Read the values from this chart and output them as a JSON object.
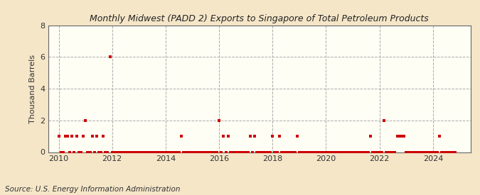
{
  "title": "Monthly Midwest (PADD 2) Exports to Singapore of Total Petroleum Products",
  "ylabel": "Thousand Barrels",
  "source": "Source: U.S. Energy Information Administration",
  "background_color": "#F5E6C8",
  "plot_background_color": "#FFFEF5",
  "marker_color": "#CC0000",
  "marker_size": 5,
  "ylim": [
    0,
    8
  ],
  "yticks": [
    0,
    2,
    4,
    6,
    8
  ],
  "xlim_start": 2009.6,
  "xlim_end": 2025.4,
  "xticks": [
    2010,
    2012,
    2014,
    2016,
    2018,
    2020,
    2022,
    2024
  ],
  "data_points": [
    [
      2010.0,
      1
    ],
    [
      2010.08,
      0
    ],
    [
      2010.17,
      0
    ],
    [
      2010.25,
      1
    ],
    [
      2010.33,
      1
    ],
    [
      2010.42,
      0
    ],
    [
      2010.5,
      1
    ],
    [
      2010.58,
      0
    ],
    [
      2010.67,
      1
    ],
    [
      2010.75,
      0
    ],
    [
      2010.83,
      0
    ],
    [
      2010.92,
      1
    ],
    [
      2011.0,
      2
    ],
    [
      2011.08,
      0
    ],
    [
      2011.17,
      0
    ],
    [
      2011.25,
      1
    ],
    [
      2011.33,
      0
    ],
    [
      2011.42,
      1
    ],
    [
      2011.5,
      0
    ],
    [
      2011.58,
      0
    ],
    [
      2011.67,
      1
    ],
    [
      2011.75,
      0
    ],
    [
      2011.83,
      0
    ],
    [
      2011.92,
      6
    ],
    [
      2012.0,
      0
    ],
    [
      2012.08,
      0
    ],
    [
      2012.17,
      0
    ],
    [
      2012.25,
      0
    ],
    [
      2012.33,
      0
    ],
    [
      2012.42,
      0
    ],
    [
      2012.5,
      0
    ],
    [
      2012.58,
      0
    ],
    [
      2012.67,
      0
    ],
    [
      2012.75,
      0
    ],
    [
      2012.83,
      0
    ],
    [
      2012.92,
      0
    ],
    [
      2013.0,
      0
    ],
    [
      2013.08,
      0
    ],
    [
      2013.17,
      0
    ],
    [
      2013.25,
      0
    ],
    [
      2013.33,
      0
    ],
    [
      2013.42,
      0
    ],
    [
      2013.5,
      0
    ],
    [
      2013.58,
      0
    ],
    [
      2013.67,
      0
    ],
    [
      2013.75,
      0
    ],
    [
      2013.83,
      0
    ],
    [
      2013.92,
      0
    ],
    [
      2014.0,
      0
    ],
    [
      2014.08,
      0
    ],
    [
      2014.17,
      0
    ],
    [
      2014.25,
      0
    ],
    [
      2014.33,
      0
    ],
    [
      2014.42,
      0
    ],
    [
      2014.5,
      0
    ],
    [
      2014.58,
      1
    ],
    [
      2014.67,
      0
    ],
    [
      2014.75,
      0
    ],
    [
      2014.83,
      0
    ],
    [
      2014.92,
      0
    ],
    [
      2015.0,
      0
    ],
    [
      2015.08,
      0
    ],
    [
      2015.17,
      0
    ],
    [
      2015.25,
      0
    ],
    [
      2015.33,
      0
    ],
    [
      2015.42,
      0
    ],
    [
      2015.5,
      0
    ],
    [
      2015.58,
      0
    ],
    [
      2015.67,
      0
    ],
    [
      2015.75,
      0
    ],
    [
      2015.83,
      0
    ],
    [
      2015.92,
      0
    ],
    [
      2016.0,
      2
    ],
    [
      2016.08,
      0
    ],
    [
      2016.17,
      1
    ],
    [
      2016.25,
      0
    ],
    [
      2016.33,
      1
    ],
    [
      2016.42,
      0
    ],
    [
      2016.5,
      0
    ],
    [
      2016.58,
      0
    ],
    [
      2016.67,
      0
    ],
    [
      2016.75,
      0
    ],
    [
      2016.83,
      0
    ],
    [
      2016.92,
      0
    ],
    [
      2017.0,
      0
    ],
    [
      2017.08,
      0
    ],
    [
      2017.17,
      1
    ],
    [
      2017.25,
      0
    ],
    [
      2017.33,
      1
    ],
    [
      2017.42,
      0
    ],
    [
      2017.5,
      0
    ],
    [
      2017.58,
      0
    ],
    [
      2017.67,
      0
    ],
    [
      2017.75,
      0
    ],
    [
      2017.83,
      0
    ],
    [
      2017.92,
      0
    ],
    [
      2018.0,
      1
    ],
    [
      2018.08,
      0
    ],
    [
      2018.17,
      0
    ],
    [
      2018.25,
      1
    ],
    [
      2018.33,
      0
    ],
    [
      2018.42,
      0
    ],
    [
      2018.5,
      0
    ],
    [
      2018.58,
      0
    ],
    [
      2018.67,
      0
    ],
    [
      2018.75,
      0
    ],
    [
      2018.83,
      0
    ],
    [
      2018.92,
      1
    ],
    [
      2019.0,
      0
    ],
    [
      2019.08,
      0
    ],
    [
      2019.17,
      0
    ],
    [
      2019.25,
      0
    ],
    [
      2019.33,
      0
    ],
    [
      2019.42,
      0
    ],
    [
      2019.5,
      0
    ],
    [
      2019.58,
      0
    ],
    [
      2019.67,
      0
    ],
    [
      2019.75,
      0
    ],
    [
      2019.83,
      0
    ],
    [
      2019.92,
      0
    ],
    [
      2020.0,
      0
    ],
    [
      2020.08,
      0
    ],
    [
      2020.17,
      0
    ],
    [
      2020.25,
      0
    ],
    [
      2020.33,
      0
    ],
    [
      2020.42,
      0
    ],
    [
      2020.5,
      0
    ],
    [
      2020.58,
      0
    ],
    [
      2020.67,
      0
    ],
    [
      2020.75,
      0
    ],
    [
      2020.83,
      0
    ],
    [
      2020.92,
      0
    ],
    [
      2021.0,
      0
    ],
    [
      2021.08,
      0
    ],
    [
      2021.17,
      0
    ],
    [
      2021.25,
      0
    ],
    [
      2021.33,
      0
    ],
    [
      2021.42,
      0
    ],
    [
      2021.5,
      0
    ],
    [
      2021.58,
      0
    ],
    [
      2021.67,
      1
    ],
    [
      2021.75,
      0
    ],
    [
      2021.83,
      0
    ],
    [
      2021.92,
      0
    ],
    [
      2022.0,
      0
    ],
    [
      2022.08,
      0
    ],
    [
      2022.17,
      2
    ],
    [
      2022.25,
      0
    ],
    [
      2022.33,
      0
    ],
    [
      2022.42,
      0
    ],
    [
      2022.5,
      0
    ],
    [
      2022.58,
      0
    ],
    [
      2022.67,
      1
    ],
    [
      2022.75,
      1
    ],
    [
      2022.83,
      1
    ],
    [
      2022.92,
      1
    ],
    [
      2023.0,
      0
    ],
    [
      2023.08,
      0
    ],
    [
      2023.17,
      0
    ],
    [
      2023.25,
      0
    ],
    [
      2023.33,
      0
    ],
    [
      2023.42,
      0
    ],
    [
      2023.5,
      0
    ],
    [
      2023.58,
      0
    ],
    [
      2023.67,
      0
    ],
    [
      2023.75,
      0
    ],
    [
      2023.83,
      0
    ],
    [
      2023.92,
      0
    ],
    [
      2024.0,
      0
    ],
    [
      2024.08,
      0
    ],
    [
      2024.17,
      0
    ],
    [
      2024.25,
      1
    ],
    [
      2024.33,
      0
    ],
    [
      2024.42,
      0
    ],
    [
      2024.5,
      0
    ],
    [
      2024.58,
      0
    ],
    [
      2024.67,
      0
    ],
    [
      2024.75,
      0
    ],
    [
      2024.83,
      0
    ]
  ]
}
